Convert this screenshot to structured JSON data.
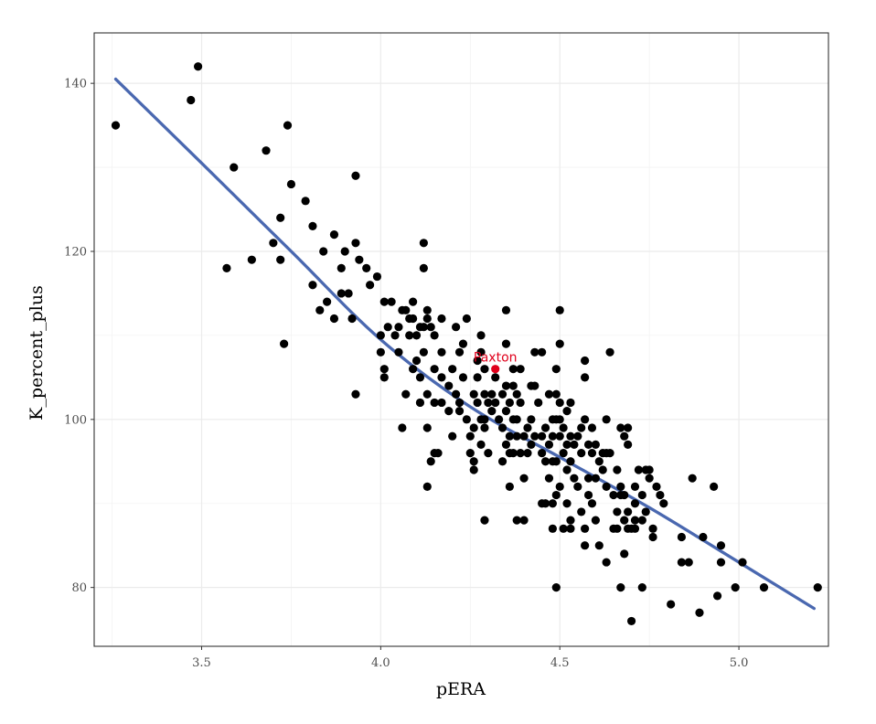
{
  "chart_data": {
    "type": "scatter",
    "title": "",
    "xlabel": "pERA",
    "ylabel": "K_percent_plus",
    "xlim": [
      3.2,
      5.25
    ],
    "ylim": [
      73,
      146
    ],
    "x_ticks": [
      3.5,
      4.0,
      4.5,
      5.0
    ],
    "x_tick_labels": [
      "3.5",
      "4.0",
      "4.5",
      "5.0"
    ],
    "y_ticks": [
      80,
      100,
      120,
      140
    ],
    "y_tick_labels": [
      "80",
      "100",
      "120",
      "140"
    ],
    "grid": true,
    "legend": "none",
    "colors": {
      "points": "#000000",
      "trend": "#4a68b0",
      "highlight": "#e0001b",
      "grid": "#ebebeb",
      "panel_border": "#333333"
    },
    "highlight": {
      "label": "Paxton",
      "x": 4.32,
      "y": 106
    },
    "trend_line": {
      "x": [
        3.26,
        3.5,
        3.75,
        4.0,
        4.25,
        4.5,
        4.75,
        5.0,
        5.21
      ],
      "y": [
        140.5,
        130.5,
        120.0,
        109.5,
        101.5,
        95.5,
        89.5,
        83.0,
        77.5
      ]
    },
    "points": [
      [
        3.26,
        135
      ],
      [
        3.47,
        138
      ],
      [
        3.49,
        142
      ],
      [
        3.59,
        130
      ],
      [
        3.57,
        118
      ],
      [
        3.64,
        119
      ],
      [
        3.68,
        132
      ],
      [
        3.7,
        121
      ],
      [
        3.72,
        124
      ],
      [
        3.72,
        119
      ],
      [
        3.73,
        109
      ],
      [
        3.74,
        135
      ],
      [
        3.75,
        128
      ],
      [
        3.79,
        126
      ],
      [
        3.81,
        123
      ],
      [
        3.81,
        116
      ],
      [
        3.83,
        113
      ],
      [
        3.84,
        120
      ],
      [
        3.85,
        114
      ],
      [
        3.87,
        122
      ],
      [
        3.87,
        112
      ],
      [
        3.89,
        118
      ],
      [
        3.89,
        115
      ],
      [
        3.9,
        120
      ],
      [
        3.91,
        115
      ],
      [
        3.92,
        112
      ],
      [
        3.93,
        129
      ],
      [
        3.93,
        121
      ],
      [
        3.93,
        103
      ],
      [
        3.94,
        119
      ],
      [
        3.96,
        118
      ],
      [
        3.97,
        116
      ],
      [
        3.99,
        117
      ],
      [
        4.0,
        110
      ],
      [
        4.0,
        108
      ],
      [
        4.01,
        114
      ],
      [
        4.01,
        106
      ],
      [
        4.01,
        105
      ],
      [
        4.02,
        111
      ],
      [
        4.03,
        114
      ],
      [
        4.04,
        110
      ],
      [
        4.05,
        111
      ],
      [
        4.05,
        108
      ],
      [
        4.06,
        113
      ],
      [
        4.06,
        99
      ],
      [
        4.07,
        113
      ],
      [
        4.07,
        103
      ],
      [
        4.08,
        112
      ],
      [
        4.08,
        110
      ],
      [
        4.09,
        114
      ],
      [
        4.09,
        112
      ],
      [
        4.09,
        106
      ],
      [
        4.1,
        107
      ],
      [
        4.1,
        110
      ],
      [
        4.11,
        111
      ],
      [
        4.11,
        105
      ],
      [
        4.11,
        102
      ],
      [
        4.12,
        121
      ],
      [
        4.12,
        118
      ],
      [
        4.12,
        111
      ],
      [
        4.12,
        108
      ],
      [
        4.13,
        113
      ],
      [
        4.13,
        112
      ],
      [
        4.13,
        103
      ],
      [
        4.13,
        99
      ],
      [
        4.13,
        92
      ],
      [
        4.14,
        95
      ],
      [
        4.14,
        111
      ],
      [
        4.15,
        110
      ],
      [
        4.15,
        106
      ],
      [
        4.15,
        102
      ],
      [
        4.15,
        96
      ],
      [
        4.16,
        96
      ],
      [
        4.17,
        112
      ],
      [
        4.17,
        108
      ],
      [
        4.17,
        105
      ],
      [
        4.17,
        102
      ],
      [
        4.19,
        104
      ],
      [
        4.19,
        101
      ],
      [
        4.2,
        106
      ],
      [
        4.2,
        98
      ],
      [
        4.21,
        111
      ],
      [
        4.21,
        103
      ],
      [
        4.22,
        108
      ],
      [
        4.22,
        102
      ],
      [
        4.22,
        101
      ],
      [
        4.23,
        109
      ],
      [
        4.23,
        105
      ],
      [
        4.24,
        112
      ],
      [
        4.24,
        100
      ],
      [
        4.25,
        96
      ],
      [
        4.25,
        98
      ],
      [
        4.26,
        103
      ],
      [
        4.26,
        99
      ],
      [
        4.26,
        95
      ],
      [
        4.26,
        94
      ],
      [
        4.27,
        107
      ],
      [
        4.27,
        105
      ],
      [
        4.27,
        102
      ],
      [
        4.28,
        110
      ],
      [
        4.28,
        108
      ],
      [
        4.28,
        100
      ],
      [
        4.28,
        97
      ],
      [
        4.29,
        106
      ],
      [
        4.29,
        103
      ],
      [
        4.29,
        100
      ],
      [
        4.29,
        99
      ],
      [
        4.29,
        88
      ],
      [
        4.3,
        102
      ],
      [
        4.3,
        96
      ],
      [
        4.31,
        103
      ],
      [
        4.31,
        101
      ],
      [
        4.32,
        105
      ],
      [
        4.32,
        102
      ],
      [
        4.33,
        100
      ],
      [
        4.34,
        103
      ],
      [
        4.34,
        99
      ],
      [
        4.34,
        95
      ],
      [
        4.35,
        113
      ],
      [
        4.35,
        109
      ],
      [
        4.35,
        104
      ],
      [
        4.35,
        101
      ],
      [
        4.35,
        97
      ],
      [
        4.36,
        102
      ],
      [
        4.36,
        98
      ],
      [
        4.36,
        96
      ],
      [
        4.36,
        92
      ],
      [
        4.37,
        106
      ],
      [
        4.37,
        104
      ],
      [
        4.37,
        100
      ],
      [
        4.37,
        96
      ],
      [
        4.38,
        103
      ],
      [
        4.38,
        100
      ],
      [
        4.38,
        98
      ],
      [
        4.38,
        88
      ],
      [
        4.39,
        106
      ],
      [
        4.39,
        102
      ],
      [
        4.39,
        96
      ],
      [
        4.4,
        98
      ],
      [
        4.4,
        93
      ],
      [
        4.4,
        88
      ],
      [
        4.41,
        99
      ],
      [
        4.41,
        96
      ],
      [
        4.42,
        104
      ],
      [
        4.42,
        100
      ],
      [
        4.42,
        97
      ],
      [
        4.43,
        108
      ],
      [
        4.43,
        104
      ],
      [
        4.43,
        98
      ],
      [
        4.44,
        102
      ],
      [
        4.45,
        108
      ],
      [
        4.45,
        98
      ],
      [
        4.45,
        96
      ],
      [
        4.45,
        90
      ],
      [
        4.46,
        99
      ],
      [
        4.46,
        95
      ],
      [
        4.46,
        90
      ],
      [
        4.47,
        103
      ],
      [
        4.47,
        97
      ],
      [
        4.47,
        93
      ],
      [
        4.48,
        100
      ],
      [
        4.48,
        98
      ],
      [
        4.48,
        95
      ],
      [
        4.48,
        90
      ],
      [
        4.48,
        87
      ],
      [
        4.49,
        103
      ],
      [
        4.49,
        106
      ],
      [
        4.49,
        100
      ],
      [
        4.49,
        95
      ],
      [
        4.49,
        91
      ],
      [
        4.49,
        80
      ],
      [
        4.5,
        109
      ],
      [
        4.5,
        113
      ],
      [
        4.5,
        102
      ],
      [
        4.5,
        100
      ],
      [
        4.5,
        98
      ],
      [
        4.5,
        92
      ],
      [
        4.51,
        99
      ],
      [
        4.51,
        96
      ],
      [
        4.51,
        87
      ],
      [
        4.52,
        101
      ],
      [
        4.52,
        97
      ],
      [
        4.52,
        94
      ],
      [
        4.52,
        90
      ],
      [
        4.53,
        102
      ],
      [
        4.53,
        98
      ],
      [
        4.53,
        95
      ],
      [
        4.53,
        88
      ],
      [
        4.53,
        87
      ],
      [
        4.54,
        97
      ],
      [
        4.54,
        93
      ],
      [
        4.55,
        98
      ],
      [
        4.55,
        92
      ],
      [
        4.56,
        99
      ],
      [
        4.56,
        96
      ],
      [
        4.57,
        107
      ],
      [
        4.57,
        105
      ],
      [
        4.56,
        89
      ],
      [
        4.57,
        87
      ],
      [
        4.57,
        85
      ],
      [
        4.57,
        100
      ],
      [
        4.58,
        97
      ],
      [
        4.58,
        93
      ],
      [
        4.58,
        91
      ],
      [
        4.59,
        99
      ],
      [
        4.59,
        96
      ],
      [
        4.59,
        90
      ],
      [
        4.6,
        97
      ],
      [
        4.6,
        93
      ],
      [
        4.6,
        88
      ],
      [
        4.61,
        95
      ],
      [
        4.61,
        85
      ],
      [
        4.62,
        94
      ],
      [
        4.62,
        96
      ],
      [
        4.63,
        100
      ],
      [
        4.63,
        96
      ],
      [
        4.63,
        92
      ],
      [
        4.63,
        83
      ],
      [
        4.64,
        108
      ],
      [
        4.64,
        96
      ],
      [
        4.65,
        91
      ],
      [
        4.65,
        87
      ],
      [
        4.66,
        94
      ],
      [
        4.66,
        89
      ],
      [
        4.66,
        87
      ],
      [
        4.67,
        99
      ],
      [
        4.67,
        92
      ],
      [
        4.67,
        91
      ],
      [
        4.67,
        80
      ],
      [
        4.68,
        98
      ],
      [
        4.68,
        91
      ],
      [
        4.68,
        88
      ],
      [
        4.68,
        84
      ],
      [
        4.69,
        99
      ],
      [
        4.69,
        97
      ],
      [
        4.69,
        89
      ],
      [
        4.69,
        87
      ],
      [
        4.7,
        87
      ],
      [
        4.7,
        76
      ],
      [
        4.71,
        92
      ],
      [
        4.71,
        90
      ],
      [
        4.71,
        88
      ],
      [
        4.71,
        87
      ],
      [
        4.72,
        94
      ],
      [
        4.73,
        91
      ],
      [
        4.73,
        80
      ],
      [
        4.73,
        88
      ],
      [
        4.74,
        94
      ],
      [
        4.74,
        89
      ],
      [
        4.75,
        93
      ],
      [
        4.75,
        94
      ],
      [
        4.76,
        87
      ],
      [
        4.76,
        86
      ],
      [
        4.77,
        92
      ],
      [
        4.78,
        91
      ],
      [
        4.79,
        90
      ],
      [
        4.81,
        78
      ],
      [
        4.84,
        86
      ],
      [
        4.84,
        83
      ],
      [
        4.86,
        83
      ],
      [
        4.87,
        93
      ],
      [
        4.89,
        77
      ],
      [
        4.9,
        86
      ],
      [
        4.93,
        92
      ],
      [
        4.94,
        79
      ],
      [
        4.95,
        85
      ],
      [
        4.95,
        83
      ],
      [
        4.99,
        80
      ],
      [
        5.01,
        83
      ],
      [
        5.07,
        80
      ],
      [
        5.22,
        80
      ]
    ]
  }
}
